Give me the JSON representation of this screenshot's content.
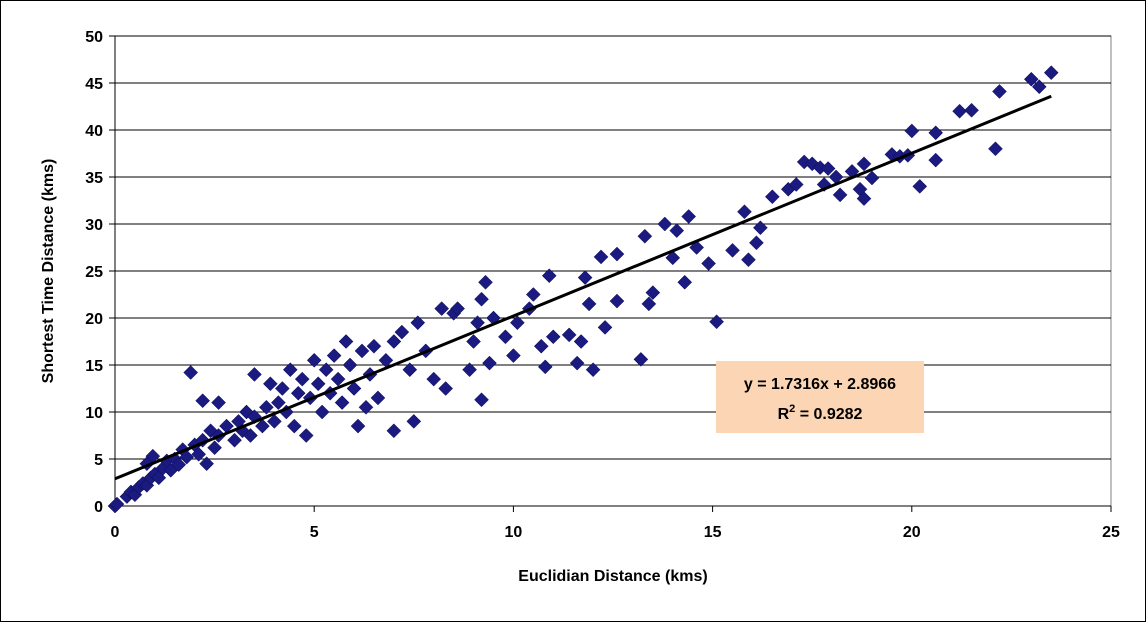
{
  "chart_data": {
    "type": "scatter",
    "title": "",
    "xlabel": "Euclidian Distance (kms)",
    "ylabel": "Shortest Time Distance (kms)",
    "xlim": [
      0,
      25
    ],
    "ylim": [
      0,
      50
    ],
    "x_ticks": [
      "0",
      "5",
      "10",
      "15",
      "20",
      "25"
    ],
    "y_ticks": [
      "0",
      "5",
      "10",
      "15",
      "20",
      "25",
      "30",
      "35",
      "40",
      "45",
      "50"
    ],
    "grid": "horizontal",
    "legend": "none",
    "marker": "diamond",
    "marker_color": "#1a1a80",
    "plot_background": "#ffffff",
    "trendline": {
      "type": "linear",
      "slope": 1.7316,
      "intercept": 2.8966,
      "x_range": [
        0,
        23.5
      ],
      "color": "#000000",
      "equation": "y = 1.7316x + 2.8966",
      "r2_prefix": "R",
      "r2_sup": "2",
      "r2_value": " = 0.9282",
      "box_color": "#fcd5b4"
    },
    "series": [
      {
        "points": [
          [
            0.0,
            0.0
          ],
          [
            0.05,
            0.2
          ],
          [
            0.3,
            1.0
          ],
          [
            0.4,
            1.5
          ],
          [
            0.5,
            1.2
          ],
          [
            0.6,
            2.0
          ],
          [
            0.7,
            2.4
          ],
          [
            0.8,
            2.2
          ],
          [
            0.9,
            3.0
          ],
          [
            0.8,
            4.5
          ],
          [
            0.95,
            5.3
          ],
          [
            1.0,
            3.4
          ],
          [
            1.1,
            3.0
          ],
          [
            1.2,
            4.0
          ],
          [
            1.3,
            4.8
          ],
          [
            1.4,
            3.8
          ],
          [
            1.5,
            5.0
          ],
          [
            1.6,
            4.4
          ],
          [
            1.7,
            6.0
          ],
          [
            1.8,
            5.2
          ],
          [
            1.9,
            14.2
          ],
          [
            2.0,
            6.5
          ],
          [
            2.1,
            5.5
          ],
          [
            2.2,
            7.0
          ],
          [
            2.3,
            4.5
          ],
          [
            2.4,
            8.0
          ],
          [
            2.5,
            6.2
          ],
          [
            2.6,
            7.5
          ],
          [
            2.2,
            11.2
          ],
          [
            2.6,
            11.0
          ],
          [
            2.8,
            8.5
          ],
          [
            3.0,
            7.0
          ],
          [
            3.1,
            9.0
          ],
          [
            3.2,
            8.0
          ],
          [
            3.3,
            10.0
          ],
          [
            3.4,
            7.5
          ],
          [
            3.5,
            9.5
          ],
          [
            3.5,
            14.0
          ],
          [
            3.7,
            8.5
          ],
          [
            3.8,
            10.5
          ],
          [
            3.9,
            13.0
          ],
          [
            4.0,
            9.0
          ],
          [
            4.1,
            11.0
          ],
          [
            4.2,
            12.5
          ],
          [
            4.3,
            10.0
          ],
          [
            4.4,
            14.5
          ],
          [
            4.5,
            8.5
          ],
          [
            4.6,
            12.0
          ],
          [
            4.7,
            13.5
          ],
          [
            4.8,
            7.5
          ],
          [
            4.9,
            11.5
          ],
          [
            5.0,
            15.5
          ],
          [
            5.1,
            13.0
          ],
          [
            5.2,
            10.0
          ],
          [
            5.3,
            14.5
          ],
          [
            5.4,
            12.0
          ],
          [
            5.5,
            16.0
          ],
          [
            5.6,
            13.5
          ],
          [
            5.7,
            11.0
          ],
          [
            5.8,
            17.5
          ],
          [
            5.9,
            15.0
          ],
          [
            6.0,
            12.5
          ],
          [
            6.1,
            8.5
          ],
          [
            6.2,
            16.5
          ],
          [
            6.3,
            10.5
          ],
          [
            6.4,
            14.0
          ],
          [
            6.5,
            17.0
          ],
          [
            6.6,
            11.5
          ],
          [
            6.8,
            15.5
          ],
          [
            7.0,
            8.0
          ],
          [
            7.0,
            17.5
          ],
          [
            7.2,
            18.5
          ],
          [
            7.4,
            14.5
          ],
          [
            7.5,
            9.0
          ],
          [
            7.6,
            19.5
          ],
          [
            7.8,
            16.5
          ],
          [
            8.0,
            13.5
          ],
          [
            8.2,
            21.0
          ],
          [
            8.3,
            12.5
          ],
          [
            8.5,
            20.5
          ],
          [
            8.6,
            21.0
          ],
          [
            8.9,
            14.5
          ],
          [
            9.0,
            17.5
          ],
          [
            9.1,
            19.5
          ],
          [
            9.2,
            11.3
          ],
          [
            9.2,
            22.0
          ],
          [
            9.3,
            23.8
          ],
          [
            9.4,
            15.2
          ],
          [
            9.5,
            20.0
          ],
          [
            9.8,
            18.0
          ],
          [
            10.0,
            16.0
          ],
          [
            10.1,
            19.5
          ],
          [
            10.4,
            21.0
          ],
          [
            10.5,
            22.5
          ],
          [
            10.7,
            17.0
          ],
          [
            10.8,
            14.8
          ],
          [
            10.9,
            24.5
          ],
          [
            11.0,
            18.0
          ],
          [
            11.4,
            18.2
          ],
          [
            11.6,
            15.2
          ],
          [
            11.7,
            17.5
          ],
          [
            11.8,
            24.3
          ],
          [
            11.9,
            21.5
          ],
          [
            12.0,
            14.5
          ],
          [
            12.2,
            26.5
          ],
          [
            12.3,
            19.0
          ],
          [
            12.6,
            21.8
          ],
          [
            12.6,
            26.8
          ],
          [
            13.2,
            15.6
          ],
          [
            13.3,
            28.7
          ],
          [
            13.4,
            21.5
          ],
          [
            13.5,
            22.7
          ],
          [
            13.8,
            30.0
          ],
          [
            14.0,
            26.4
          ],
          [
            14.1,
            29.3
          ],
          [
            14.3,
            23.8
          ],
          [
            14.4,
            30.8
          ],
          [
            14.6,
            27.5
          ],
          [
            14.9,
            25.8
          ],
          [
            15.1,
            19.6
          ],
          [
            15.5,
            27.2
          ],
          [
            15.8,
            31.3
          ],
          [
            15.9,
            26.2
          ],
          [
            16.1,
            28.0
          ],
          [
            16.2,
            29.6
          ],
          [
            16.5,
            32.9
          ],
          [
            16.9,
            33.7
          ],
          [
            17.1,
            34.2
          ],
          [
            17.3,
            36.6
          ],
          [
            17.5,
            36.4
          ],
          [
            17.7,
            36.0
          ],
          [
            17.8,
            34.2
          ],
          [
            17.9,
            35.9
          ],
          [
            18.1,
            35.0
          ],
          [
            18.2,
            33.1
          ],
          [
            18.5,
            35.6
          ],
          [
            18.7,
            33.7
          ],
          [
            18.8,
            32.7
          ],
          [
            18.8,
            36.4
          ],
          [
            19.0,
            34.9
          ],
          [
            19.5,
            37.4
          ],
          [
            19.7,
            37.2
          ],
          [
            19.9,
            37.3
          ],
          [
            20.0,
            39.9
          ],
          [
            20.2,
            34.0
          ],
          [
            20.6,
            36.8
          ],
          [
            20.6,
            39.7
          ],
          [
            21.2,
            42.0
          ],
          [
            21.5,
            42.1
          ],
          [
            22.1,
            38.0
          ],
          [
            22.2,
            44.1
          ],
          [
            23.0,
            45.4
          ],
          [
            23.2,
            44.6
          ],
          [
            23.5,
            46.1
          ]
        ]
      }
    ]
  }
}
